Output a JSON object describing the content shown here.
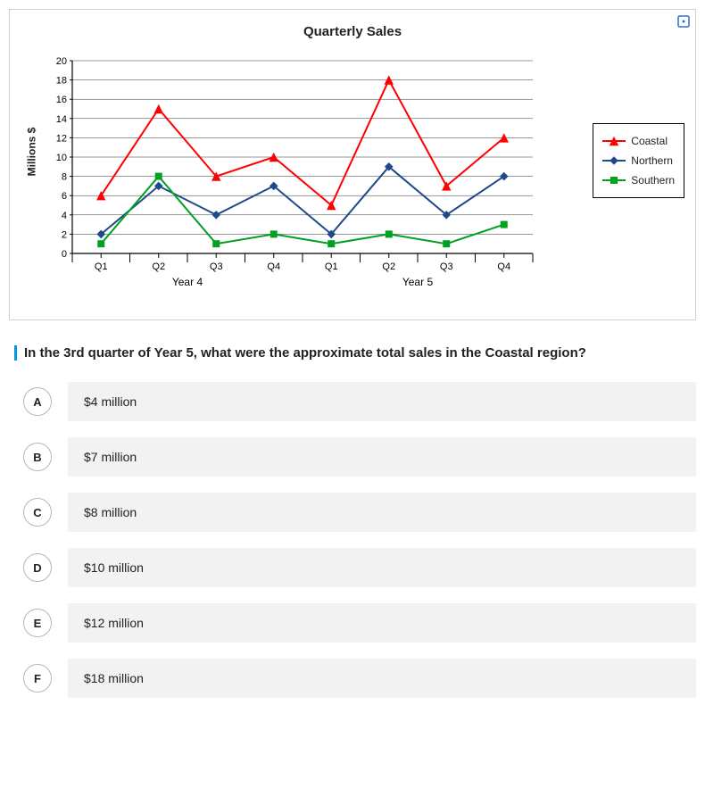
{
  "chart": {
    "type": "line",
    "title": "Quarterly Sales",
    "ylabel": "Millions $",
    "y": {
      "min": 0,
      "max": 20,
      "ticks": [
        0,
        2,
        4,
        6,
        8,
        10,
        12,
        14,
        16,
        18,
        20
      ]
    },
    "x_groups": [
      {
        "label": "Year 4",
        "quarters": [
          "Q1",
          "Q2",
          "Q3",
          "Q4"
        ]
      },
      {
        "label": "Year 5",
        "quarters": [
          "Q1",
          "Q2",
          "Q3",
          "Q4"
        ]
      }
    ],
    "series": [
      {
        "name": "Coastal",
        "color": "#ff0000",
        "marker": "triangle",
        "values": [
          6,
          15,
          8,
          10,
          5,
          18,
          7,
          12
        ]
      },
      {
        "name": "Northern",
        "color": "#1e4a8a",
        "marker": "diamond",
        "values": [
          2,
          7,
          4,
          7,
          2,
          9,
          4,
          8
        ]
      },
      {
        "name": "Southern",
        "color": "#00a020",
        "marker": "square",
        "values": [
          1,
          8,
          1,
          2,
          1,
          2,
          1,
          3
        ]
      }
    ],
    "background_color": "#ffffff",
    "gridline_color": "#808080",
    "major_gridline_color": "#303030",
    "axis_color": "#000000",
    "line_width": 2,
    "marker_size": 4,
    "title_fontsize": 15,
    "label_fontsize": 12
  },
  "question": "In the 3rd quarter of Year 5, what were the approximate total sales in the Coastal region?",
  "answers": [
    {
      "letter": "A",
      "text": "$4 million"
    },
    {
      "letter": "B",
      "text": "$7 million"
    },
    {
      "letter": "C",
      "text": "$8 million"
    },
    {
      "letter": "D",
      "text": "$10 million"
    },
    {
      "letter": "E",
      "text": "$12 million"
    },
    {
      "letter": "F",
      "text": "$18 million"
    }
  ]
}
